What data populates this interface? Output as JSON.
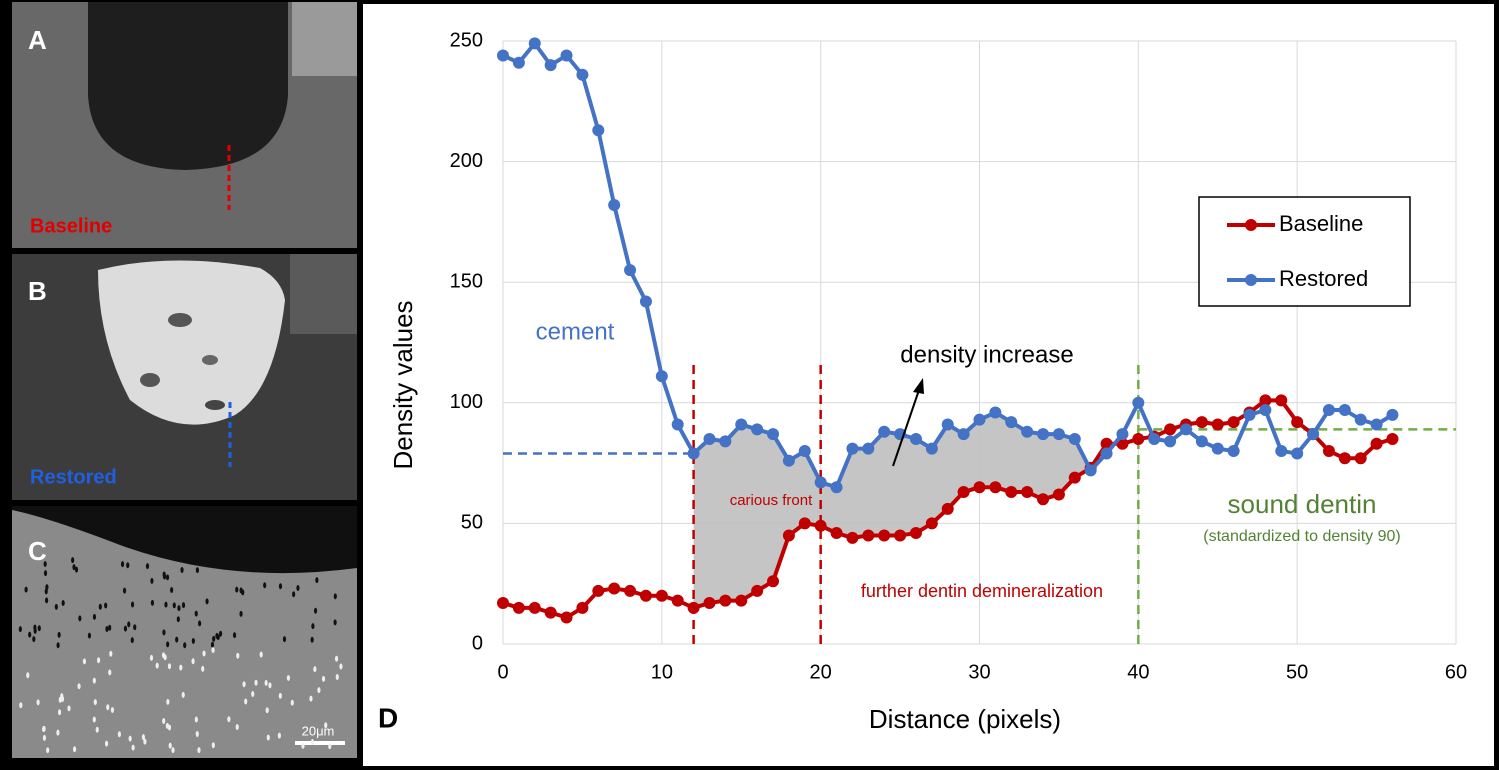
{
  "panels": [
    {
      "letter": "A",
      "caption": "Baseline"
    },
    {
      "letter": "B",
      "caption": "Restored"
    },
    {
      "letter": "C",
      "caption": "20μm"
    }
  ],
  "chart_data": {
    "type": "line",
    "letter": "D",
    "x_label": "Distance (pixels)",
    "y_label": "Density values",
    "x": [
      0,
      1,
      2,
      3,
      4,
      5,
      6,
      7,
      8,
      9,
      10,
      11,
      12,
      13,
      14,
      15,
      16,
      17,
      18,
      19,
      20,
      21,
      22,
      23,
      24,
      25,
      26,
      27,
      28,
      29,
      30,
      31,
      32,
      33,
      34,
      35,
      36,
      37,
      38,
      39,
      40,
      41,
      42,
      43,
      44,
      45,
      46,
      47,
      48,
      49,
      50,
      51,
      52,
      53,
      54,
      55,
      56
    ],
    "series": [
      {
        "name": "Baseline",
        "color": "#c00000",
        "values": [
          17,
          15,
          15,
          13,
          11,
          15,
          22,
          23,
          22,
          20,
          20,
          18,
          15,
          17,
          18,
          18,
          22,
          26,
          45,
          50,
          49,
          46,
          44,
          45,
          45,
          45,
          46,
          50,
          56,
          63,
          65,
          65,
          63,
          63,
          60,
          62,
          69,
          73,
          83,
          83,
          85,
          86,
          89,
          91,
          92,
          91,
          92,
          96,
          101,
          101,
          92,
          87,
          80,
          77,
          77,
          83,
          85
        ]
      },
      {
        "name": "Restored",
        "color": "#4472c4",
        "values": [
          244,
          241,
          249,
          240,
          244,
          236,
          213,
          182,
          155,
          142,
          111,
          91,
          79,
          85,
          84,
          91,
          89,
          87,
          76,
          80,
          67,
          65,
          81,
          81,
          88,
          87,
          85,
          81,
          91,
          87,
          93,
          96,
          92,
          88,
          87,
          87,
          85,
          72,
          79,
          87,
          100,
          85,
          84,
          89,
          84,
          81,
          80,
          95,
          97,
          80,
          79,
          87,
          97,
          97,
          93,
          91,
          95
        ]
      }
    ],
    "shade_range": [
      12,
      37
    ],
    "shade_color": "#bfbfbf",
    "guide_lines": [
      {
        "x": [
          0,
          12
        ],
        "y": [
          79,
          79
        ],
        "color": "#4472c4"
      },
      {
        "x": [
          12,
          12
        ],
        "y": [
          0,
          116
        ],
        "color": "#c00000"
      },
      {
        "x": [
          20,
          20
        ],
        "y": [
          0,
          117
        ],
        "color": "#c00000"
      },
      {
        "x": [
          40,
          40
        ],
        "y": [
          0,
          118
        ],
        "color": "#70ad47"
      },
      {
        "x": [
          40,
          60
        ],
        "y": [
          89,
          89
        ],
        "color": "#70ad47"
      }
    ],
    "annotations": [
      {
        "text": "cement",
        "color": "#4472c4"
      },
      {
        "text": "density increase",
        "color": "#000000"
      },
      {
        "text": "carious front",
        "color": "#c00000"
      },
      {
        "text": "further dentin demineralization",
        "color": "#c00000"
      },
      {
        "text": "sound dentin",
        "color": "#548235"
      },
      {
        "text": "(standardized to density 90)",
        "color": "#548235"
      }
    ],
    "xlim": [
      0,
      60
    ],
    "xticks": [
      0,
      10,
      20,
      30,
      40,
      50,
      60
    ],
    "ylim": [
      0,
      250
    ],
    "yticks": [
      0,
      50,
      100,
      150,
      200,
      250
    ],
    "grid": true,
    "legend": "upper right"
  }
}
